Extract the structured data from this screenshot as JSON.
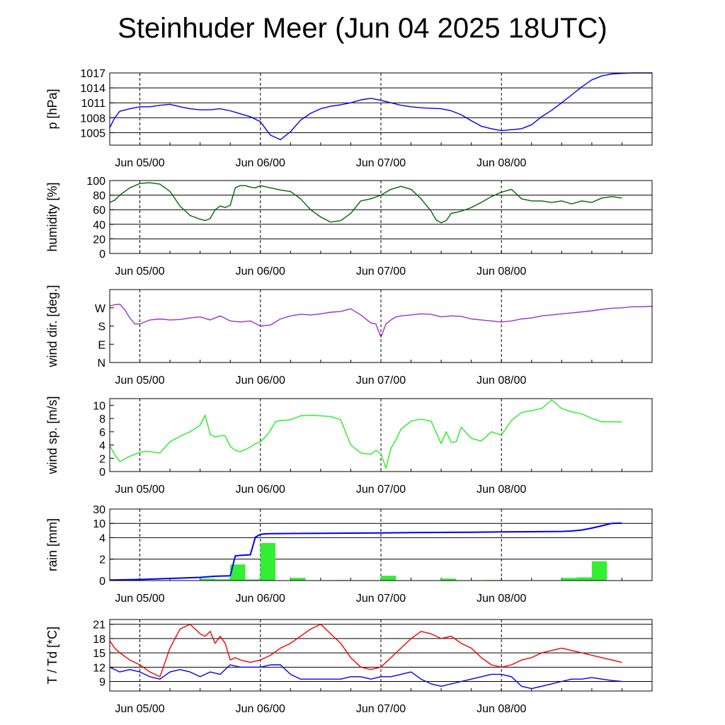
{
  "title": "Steinhuder Meer (Jun 04 2025 18UTC)",
  "x_ticks": [
    "Jun 05/00",
    "Jun 06/00",
    "Jun 07/00",
    "Jun 08/00"
  ],
  "chart_data": [
    {
      "type": "line",
      "ylabel": "p [hPa]",
      "ylim": [
        1002.5,
        1017
      ],
      "yticks": [
        1005,
        1008,
        1011,
        1014,
        1017
      ],
      "xlim": [
        -6,
        102
      ],
      "grid": true,
      "series": [
        {
          "color": "#0000ee",
          "x": [
            -6,
            -5,
            -4,
            -2,
            0,
            2,
            4,
            6,
            8,
            10,
            12,
            14,
            16,
            18,
            20,
            22,
            24,
            26,
            28,
            30,
            32,
            34,
            36,
            38,
            40,
            42,
            44,
            46,
            48,
            50,
            52,
            54,
            56,
            58,
            60,
            62,
            64,
            66,
            68,
            70,
            72,
            74,
            76,
            78,
            80,
            82,
            84,
            86,
            88,
            90,
            92,
            94,
            96,
            98,
            100,
            102
          ],
          "y": [
            1006,
            1008,
            1009.3,
            1009.8,
            1010.2,
            1010.2,
            1010.5,
            1010.7,
            1010.2,
            1009.8,
            1009.6,
            1009.6,
            1009.8,
            1009.4,
            1008.8,
            1008.2,
            1007.2,
            1004.5,
            1003.6,
            1005.2,
            1007.5,
            1008.9,
            1009.8,
            1010.3,
            1010.6,
            1011,
            1011.6,
            1011.9,
            1011.5,
            1011,
            1010.5,
            1010.2,
            1010,
            1009.9,
            1009.8,
            1009.4,
            1008.6,
            1007.4,
            1006.3,
            1005.8,
            1005.4,
            1005.6,
            1005.8,
            1006.6,
            1008.2,
            1009.5,
            1011,
            1012.6,
            1014.2,
            1015.6,
            1016.4,
            1016.8,
            1016.9,
            1017,
            1017,
            1017
          ]
        }
      ]
    },
    {
      "type": "line",
      "ylabel": "humidity [%]",
      "ylim": [
        0,
        100
      ],
      "yticks": [
        0,
        20,
        40,
        60,
        80,
        100
      ],
      "xlim": [
        -6,
        102
      ],
      "grid": true,
      "series": [
        {
          "color": "#006400",
          "x": [
            -6,
            -5,
            -4,
            -2,
            0,
            2,
            4,
            6,
            8,
            10,
            12,
            13,
            14,
            15,
            16,
            17,
            18,
            19,
            20,
            21,
            22,
            23,
            24,
            26,
            28,
            30,
            32,
            34,
            36,
            38,
            40,
            42,
            44,
            46,
            48,
            50,
            52,
            54,
            56,
            58,
            59,
            60,
            61,
            62,
            64,
            66,
            68,
            70,
            72,
            74,
            76,
            78,
            80,
            82,
            84,
            86,
            88,
            90,
            92,
            94,
            96
          ],
          "y": [
            70,
            73,
            80,
            90,
            96,
            97,
            95,
            85,
            65,
            52,
            47,
            45,
            48,
            60,
            65,
            63,
            66,
            90,
            93,
            93,
            91,
            90,
            93,
            90,
            87,
            85,
            75,
            60,
            50,
            43,
            45,
            55,
            72,
            75,
            80,
            88,
            92,
            88,
            75,
            58,
            46,
            42,
            45,
            55,
            58,
            63,
            70,
            78,
            84,
            88,
            75,
            72,
            72,
            70,
            72,
            68,
            72,
            70,
            76,
            78,
            76
          ]
        }
      ]
    },
    {
      "type": "line",
      "ylabel": "wind dir. [deg.]",
      "ylim": [
        0,
        360
      ],
      "ytick_labels": [
        "N",
        "E",
        "S",
        "W"
      ],
      "yticks": [
        0,
        90,
        180,
        270
      ],
      "xlim": [
        -6,
        102
      ],
      "grid": false,
      "series": [
        {
          "color": "#9933cc",
          "x": [
            -6,
            -5,
            -4,
            -3,
            -2,
            -1,
            0,
            2,
            4,
            6,
            8,
            10,
            12,
            14,
            16,
            18,
            20,
            22,
            24,
            26,
            28,
            30,
            32,
            34,
            36,
            38,
            40,
            42,
            44,
            46,
            47,
            48,
            49,
            50,
            51,
            52,
            54,
            56,
            58,
            60,
            62,
            64,
            66,
            68,
            70,
            72,
            74,
            76,
            78,
            80,
            82,
            84,
            86,
            88,
            90,
            92,
            94,
            96,
            98,
            100,
            102
          ],
          "y": [
            280,
            285,
            288,
            260,
            220,
            190,
            190,
            210,
            215,
            210,
            212,
            220,
            225,
            210,
            230,
            205,
            200,
            205,
            180,
            185,
            215,
            230,
            238,
            235,
            240,
            248,
            252,
            265,
            235,
            195,
            190,
            125,
            190,
            210,
            225,
            230,
            235,
            240,
            238,
            225,
            230,
            228,
            215,
            210,
            205,
            200,
            205,
            215,
            220,
            230,
            235,
            240,
            245,
            250,
            255,
            262,
            268,
            270,
            275,
            275,
            278
          ]
        }
      ]
    },
    {
      "type": "line",
      "ylabel": "wind sp. [m/s]",
      "ylim": [
        0,
        11
      ],
      "yticks": [
        0,
        2,
        4,
        6,
        8,
        10
      ],
      "xlim": [
        -6,
        102
      ],
      "grid": false,
      "series": [
        {
          "color": "#22ee22",
          "x": [
            -6,
            -5,
            -4,
            -3,
            -2,
            -1,
            0,
            1,
            2,
            4,
            6,
            8,
            10,
            12,
            13,
            14,
            15,
            16,
            17,
            18,
            19,
            20,
            21,
            22,
            23,
            24,
            25,
            26,
            27,
            28,
            30,
            32,
            34,
            36,
            38,
            40,
            42,
            44,
            46,
            47,
            48,
            49,
            50,
            51,
            52,
            54,
            56,
            58,
            60,
            61,
            62,
            63,
            64,
            66,
            68,
            70,
            72,
            74,
            76,
            78,
            80,
            82,
            84,
            86,
            88,
            90,
            92,
            94,
            96
          ],
          "y": [
            3.9,
            2.5,
            1.5,
            1.9,
            2.3,
            2.6,
            2.9,
            3,
            3,
            2.8,
            4.5,
            5.3,
            6,
            7,
            8.5,
            5.6,
            5.2,
            5.4,
            5.4,
            3.8,
            3.2,
            3,
            3.3,
            3.7,
            4.2,
            4.5,
            5.2,
            6.2,
            7.5,
            7.7,
            7.8,
            8.4,
            8.5,
            8.4,
            8.3,
            7.8,
            4,
            2.8,
            2.6,
            3.2,
            2.7,
            0.5,
            3.5,
            4.8,
            6.4,
            7.6,
            7.9,
            7.6,
            4.2,
            6,
            4.4,
            4.5,
            6.7,
            5,
            4.6,
            6,
            5.5,
            7.7,
            8.9,
            9.2,
            9.5,
            10.8,
            9.5,
            9,
            8.7,
            8,
            7.5,
            7.5,
            7.5
          ]
        }
      ]
    },
    {
      "type": "bar",
      "ylabel": "rain [mm]",
      "ytick_labels": [
        "0",
        "2",
        "4",
        "10",
        "30"
      ],
      "yticks": [
        0,
        2,
        4,
        10,
        30
      ],
      "xlim": [
        -6,
        102
      ],
      "grid": true,
      "bars": {
        "color": "#33ee33",
        "x_start": [
          12,
          15,
          18,
          21,
          24,
          30,
          39,
          48,
          60,
          69,
          84,
          87,
          90
        ],
        "x_end": [
          15,
          18,
          21,
          24,
          27,
          33,
          42,
          51,
          63,
          72,
          87,
          90,
          93
        ],
        "values": [
          0.18,
          0.12,
          1.5,
          0.1,
          3.5,
          0.25,
          0.05,
          0.45,
          0.18,
          0.05,
          0.25,
          0.3,
          1.8
        ]
      },
      "series": [
        {
          "color": "#0000ee",
          "name": "cumulative",
          "x": [
            -6,
            0,
            6,
            12,
            15,
            18,
            19,
            20,
            22,
            23,
            24,
            25,
            26,
            28,
            30,
            36,
            42,
            48,
            54,
            60,
            66,
            72,
            78,
            84,
            86,
            88,
            90,
            92,
            94,
            96
          ],
          "y": [
            0.05,
            0.1,
            0.2,
            0.3,
            0.4,
            0.45,
            2.3,
            2.35,
            2.4,
            4.2,
            5.4,
            5.6,
            5.7,
            5.72,
            5.75,
            5.8,
            5.9,
            6,
            6.1,
            6.2,
            6.3,
            6.4,
            6.5,
            6.6,
            6.8,
            7.2,
            8,
            9,
            10,
            10.5
          ]
        }
      ]
    },
    {
      "type": "line",
      "ylabel": "T / Td [*C]",
      "ylim": [
        7,
        22
      ],
      "yticks": [
        9,
        12,
        15,
        18,
        21
      ],
      "xlim": [
        -6,
        102
      ],
      "grid": true,
      "series": [
        {
          "color": "#ee0000",
          "name": "T",
          "x": [
            -6,
            -5,
            -4,
            -2,
            0,
            2,
            4,
            6,
            8,
            10,
            12,
            13,
            14,
            15,
            16,
            17,
            18,
            19,
            20,
            22,
            24,
            26,
            28,
            30,
            32,
            34,
            36,
            38,
            40,
            42,
            44,
            46,
            48,
            50,
            52,
            54,
            56,
            58,
            60,
            62,
            64,
            66,
            68,
            70,
            72,
            74,
            76,
            78,
            80,
            82,
            84,
            86,
            88,
            90,
            92,
            94,
            96
          ],
          "y": [
            17.5,
            16,
            15,
            13.5,
            12.5,
            11,
            10,
            16,
            20,
            21,
            19,
            18.5,
            19.5,
            17,
            18.5,
            17,
            13.5,
            14,
            13.5,
            13,
            13.5,
            14.5,
            16,
            17,
            18.5,
            20,
            21,
            19,
            17,
            14,
            12,
            11.5,
            12,
            14,
            16,
            18,
            19.5,
            19,
            18,
            18.5,
            17,
            16,
            14,
            12.5,
            12,
            12.5,
            13.5,
            14,
            15,
            15.5,
            16,
            15.5,
            15,
            14.5,
            14,
            13.5,
            13
          ]
        },
        {
          "color": "#0000ee",
          "name": "Td",
          "x": [
            -6,
            -4,
            -2,
            0,
            2,
            4,
            6,
            8,
            10,
            12,
            14,
            16,
            18,
            20,
            22,
            24,
            26,
            28,
            30,
            32,
            34,
            36,
            38,
            40,
            42,
            44,
            46,
            48,
            50,
            52,
            54,
            56,
            58,
            60,
            62,
            64,
            66,
            68,
            70,
            72,
            74,
            76,
            78,
            80,
            82,
            84,
            86,
            88,
            90,
            92,
            94,
            96
          ],
          "y": [
            12,
            11,
            11.5,
            11,
            10,
            9.5,
            11,
            11.5,
            11,
            10,
            11,
            10.5,
            12.5,
            12,
            12,
            12,
            12.5,
            12.5,
            10.5,
            9.5,
            9.5,
            9.5,
            9.5,
            9.5,
            10,
            10,
            9.5,
            10,
            10,
            10.5,
            11,
            9.5,
            8.5,
            8,
            8.5,
            9,
            9.5,
            10,
            10.5,
            10.5,
            10,
            8,
            7.5,
            8,
            8.5,
            9,
            9.5,
            9.5,
            9.8,
            9.5,
            9.2,
            9
          ]
        }
      ]
    }
  ]
}
